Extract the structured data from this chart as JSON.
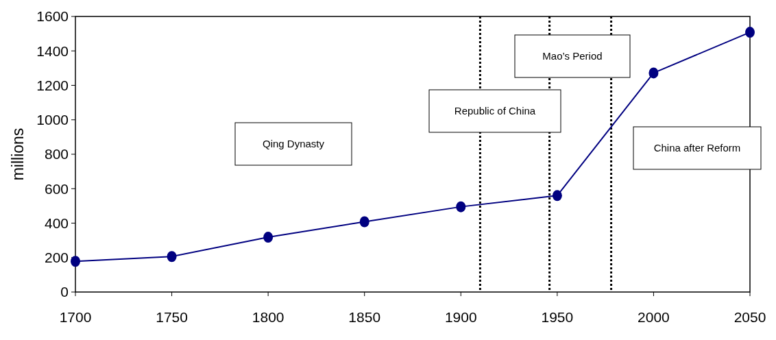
{
  "chart_data": {
    "type": "line",
    "ylabel": "millions",
    "x": [
      1700,
      1750,
      1800,
      1850,
      1900,
      1950,
      2000,
      2050
    ],
    "series": [
      {
        "color": "#000080",
        "values": [
          178,
          206,
          318,
          408,
          495,
          560,
          1272,
          1508
        ]
      }
    ],
    "xlim": [
      1700,
      2050
    ],
    "xticks": [
      1700,
      1750,
      1800,
      1850,
      1900,
      1950,
      2000,
      2050
    ],
    "ylim": [
      0,
      1600
    ],
    "yticks": [
      0,
      200,
      400,
      600,
      800,
      1000,
      1200,
      1400,
      1600
    ],
    "grid": false,
    "marker": "circle",
    "line_style": "solid",
    "ref_lines": [
      {
        "axis": "x",
        "value": 1910,
        "color": "#000000",
        "line_style": "dotted"
      },
      {
        "axis": "x",
        "value": 1946,
        "color": "#000000",
        "line_style": "dotted"
      },
      {
        "axis": "x",
        "value": 1978,
        "color": "#000000",
        "line_style": "dotted"
      }
    ],
    "annotations": [
      "Qing Dynasty",
      "Republic of China",
      "Mao’s Period",
      "China after Reform"
    ]
  }
}
